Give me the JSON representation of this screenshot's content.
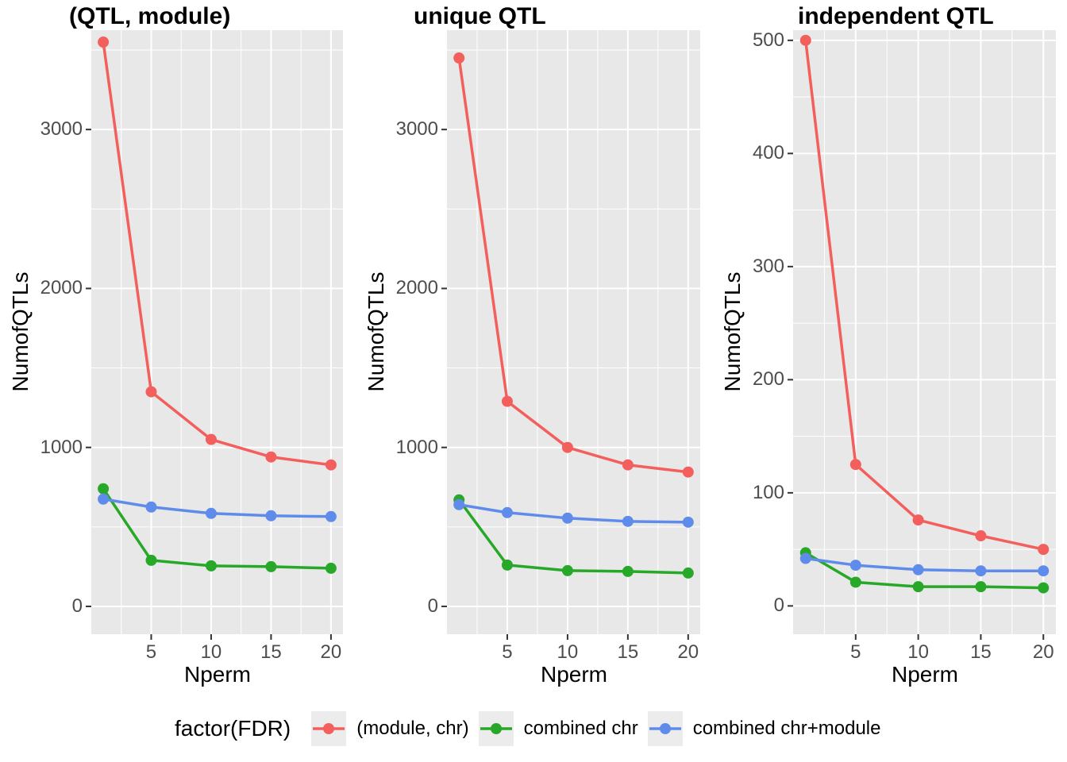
{
  "figure": {
    "background": "#FFFFFF",
    "panel_background": "#E8E8E8",
    "grid_color": "#FFFFFF",
    "tick_color": "#333333",
    "tick_label_color": "#4D4D4D"
  },
  "legend": {
    "title": "factor(FDR)",
    "position": "bottom",
    "items": [
      {
        "label": "(module, chr)",
        "color": "#F25F5C"
      },
      {
        "label": "combined chr",
        "color": "#28A828"
      },
      {
        "label": "combined chr+module",
        "color": "#5F8CEB"
      }
    ]
  },
  "chart_data": [
    {
      "type": "line",
      "title": "(QTL, module)",
      "xlabel": "Nperm",
      "ylabel": "NumofQTLs",
      "x": [
        1,
        5,
        10,
        15,
        20
      ],
      "series": [
        {
          "name": "(module, chr)",
          "color": "#F25F5C",
          "values": [
            3550,
            1350,
            1050,
            940,
            890
          ]
        },
        {
          "name": "combined chr",
          "color": "#28A828",
          "values": [
            740,
            290,
            255,
            250,
            240
          ]
        },
        {
          "name": "combined chr+module",
          "color": "#5F8CEB",
          "values": [
            675,
            625,
            585,
            570,
            565
          ]
        }
      ],
      "xlim": [
        0,
        21
      ],
      "ylim": [
        -175,
        3625
      ],
      "xticks": [
        5,
        10,
        15,
        20
      ],
      "yticks": [
        0,
        1000,
        2000,
        3000
      ],
      "xminor": [
        2.5,
        7.5,
        12.5,
        17.5
      ],
      "yminor": [
        500,
        1500,
        2500,
        3500
      ],
      "grid": true,
      "legend_position": "bottom"
    },
    {
      "type": "line",
      "title": "unique QTL",
      "xlabel": "Nperm",
      "ylabel": "NumofQTLs",
      "x": [
        1,
        5,
        10,
        15,
        20
      ],
      "series": [
        {
          "name": "(module, chr)",
          "color": "#F25F5C",
          "values": [
            3450,
            1290,
            1000,
            890,
            845
          ]
        },
        {
          "name": "combined chr",
          "color": "#28A828",
          "values": [
            670,
            260,
            225,
            220,
            210
          ]
        },
        {
          "name": "combined chr+module",
          "color": "#5F8CEB",
          "values": [
            640,
            590,
            555,
            535,
            530
          ]
        }
      ],
      "xlim": [
        0,
        21
      ],
      "ylim": [
        -175,
        3625
      ],
      "xticks": [
        5,
        10,
        15,
        20
      ],
      "yticks": [
        0,
        1000,
        2000,
        3000
      ],
      "xminor": [
        2.5,
        7.5,
        12.5,
        17.5
      ],
      "yminor": [
        500,
        1500,
        2500,
        3500
      ],
      "grid": true,
      "legend_position": "bottom"
    },
    {
      "type": "line",
      "title": "independent QTL",
      "xlabel": "Nperm",
      "ylabel": "NumofQTLs",
      "x": [
        1,
        5,
        10,
        15,
        20
      ],
      "series": [
        {
          "name": "(module, chr)",
          "color": "#F25F5C",
          "values": [
            500,
            125,
            76,
            62,
            50
          ]
        },
        {
          "name": "combined chr",
          "color": "#28A828",
          "values": [
            47,
            21,
            17,
            17,
            16
          ]
        },
        {
          "name": "combined chr+module",
          "color": "#5F8CEB",
          "values": [
            42,
            36,
            32,
            31,
            31
          ]
        }
      ],
      "xlim": [
        0,
        21
      ],
      "ylim": [
        -25,
        509
      ],
      "xticks": [
        5,
        10,
        15,
        20
      ],
      "yticks": [
        0,
        100,
        200,
        300,
        400,
        500
      ],
      "xminor": [
        2.5,
        7.5,
        12.5,
        17.5
      ],
      "yminor": [
        50,
        150,
        250,
        350,
        450
      ],
      "grid": true,
      "legend_position": "bottom"
    }
  ]
}
